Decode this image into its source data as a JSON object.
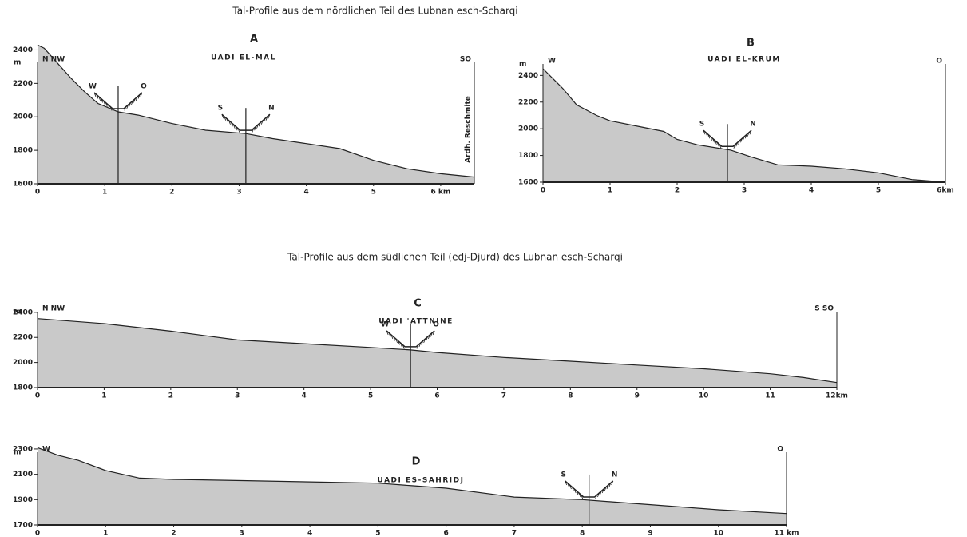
{
  "headings": [
    "Tal-Profile aus dem nördlichen Teil des Lubnan esch-Scharqi",
    "Tal-Profile aus dem südlichen Teil (edj-Djurd) des Lubnan esch-Scharqi"
  ],
  "chart_data": [
    {
      "type": "area",
      "letter": "A",
      "title": "UADI EL-MAL",
      "ylabel": "m",
      "left_label": "N NW",
      "right_label": "SO",
      "side_note": "Ardh. Reschmite",
      "x": [
        0,
        0.1,
        0.3,
        0.5,
        0.7,
        0.9,
        1.2,
        1.5,
        2,
        2.5,
        3.1,
        3.5,
        4,
        4.5,
        5,
        5.5,
        6,
        6.5
      ],
      "values": [
        2430,
        2410,
        2320,
        2230,
        2150,
        2080,
        2030,
        2010,
        1960,
        1920,
        1900,
        1870,
        1840,
        1810,
        1740,
        1690,
        1660,
        1640
      ],
      "xlim": [
        0,
        6.5
      ],
      "ylim": [
        1600,
        2450
      ],
      "xticks": [
        0,
        1,
        2,
        3,
        4,
        5,
        {
          "value": 6,
          "label": "6 km"
        }
      ],
      "yticks": [
        1600,
        1800,
        2000,
        2200,
        2400
      ],
      "color": "#c9c9c9",
      "sections": [
        {
          "x": 1.2,
          "left": "W",
          "right": "O"
        },
        {
          "x": 3.1,
          "left": "S",
          "right": "N"
        }
      ]
    },
    {
      "type": "area",
      "letter": "B",
      "title": "UADI EL-KRUM",
      "ylabel": "m",
      "left_label": "W",
      "right_label": "O",
      "x": [
        0,
        0.2,
        0.3,
        0.5,
        0.8,
        1,
        1.5,
        1.8,
        2,
        2.3,
        2.8,
        3.1,
        3.5,
        4,
        4.5,
        5,
        5.5,
        6
      ],
      "values": [
        2450,
        2350,
        2300,
        2180,
        2100,
        2060,
        2010,
        1980,
        1920,
        1880,
        1840,
        1790,
        1730,
        1720,
        1700,
        1670,
        1620,
        1600
      ],
      "xlim": [
        0,
        6
      ],
      "ylim": [
        1600,
        2450
      ],
      "xticks": [
        0,
        1,
        2,
        3,
        4,
        5,
        {
          "value": 6,
          "label": "6km"
        }
      ],
      "yticks": [
        1600,
        1800,
        2000,
        2200,
        2400
      ],
      "color": "#c9c9c9",
      "sections": [
        {
          "x": 2.75,
          "left": "S",
          "right": "N"
        }
      ]
    },
    {
      "type": "area",
      "letter": "C",
      "title": "UADI 'ATTNINE",
      "ylabel": "m",
      "left_label": "N NW",
      "right_label": "S SO",
      "x": [
        0,
        1,
        2,
        3,
        4,
        5,
        5.6,
        6,
        7,
        8,
        9,
        10,
        11,
        11.5,
        12
      ],
      "values": [
        2350,
        2310,
        2250,
        2180,
        2150,
        2120,
        2100,
        2080,
        2040,
        2010,
        1980,
        1950,
        1910,
        1880,
        1840
      ],
      "xlim": [
        0,
        12
      ],
      "ylim": [
        1800,
        2450
      ],
      "xticks": [
        0,
        1,
        2,
        3,
        4,
        5,
        6,
        7,
        8,
        9,
        10,
        11,
        {
          "value": 12,
          "label": "12km"
        }
      ],
      "yticks": [
        1800,
        2000,
        2200,
        2400
      ],
      "color": "#c9c9c9",
      "sections": [
        {
          "x": 5.6,
          "left": "W",
          "right": "O"
        }
      ]
    },
    {
      "type": "area",
      "letter": "D",
      "title": "UADI ES-SAHRIDJ",
      "ylabel": "m",
      "left_label": "W",
      "right_label": "O",
      "x": [
        0,
        0.3,
        0.6,
        1,
        1.5,
        2,
        3,
        4,
        5,
        5.5,
        6,
        7,
        8,
        8.5,
        9,
        10,
        11
      ],
      "values": [
        2310,
        2250,
        2210,
        2130,
        2070,
        2060,
        2050,
        2040,
        2030,
        2010,
        1990,
        1920,
        1900,
        1880,
        1860,
        1820,
        1790
      ],
      "xlim": [
        0,
        11
      ],
      "ylim": [
        1700,
        2350
      ],
      "xticks": [
        0,
        1,
        2,
        3,
        4,
        5,
        6,
        7,
        8,
        9,
        10,
        {
          "value": 11,
          "label": "11 km"
        }
      ],
      "yticks": [
        1700,
        1900,
        2100,
        2300
      ],
      "color": "#c9c9c9",
      "sections": [
        {
          "x": 8.1,
          "left": "S",
          "right": "N"
        }
      ]
    }
  ]
}
